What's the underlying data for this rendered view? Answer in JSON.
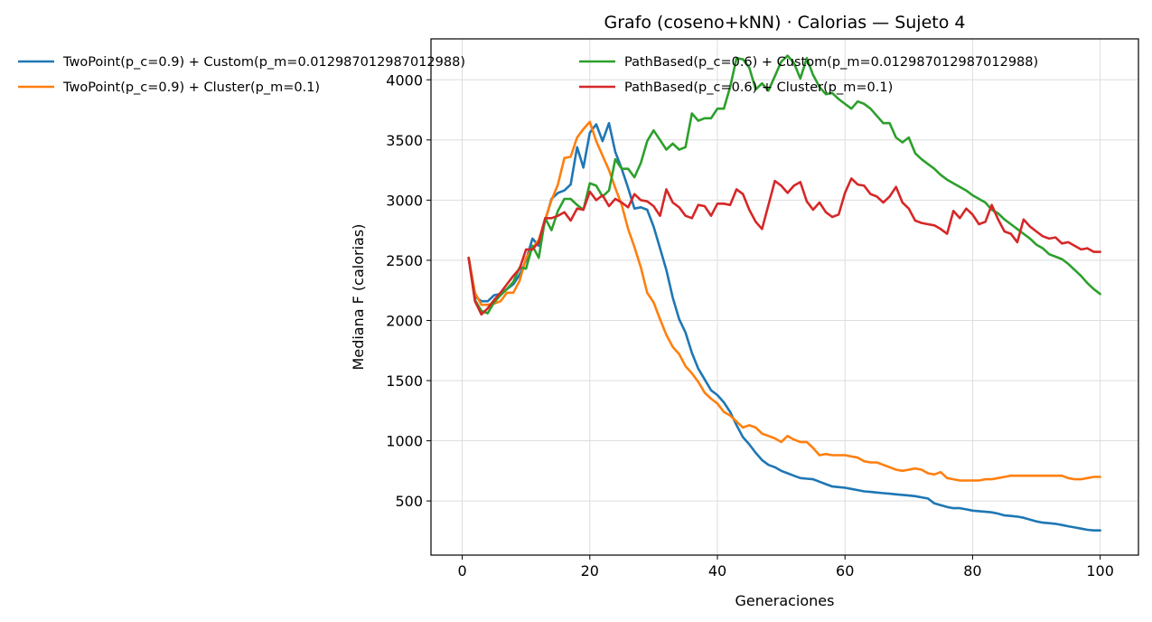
{
  "chart_data": {
    "type": "line",
    "title": "Grafo (coseno+kNN) · Calorias — Sujeto 4",
    "xlabel": "Generaciones",
    "ylabel": "Mediana F (calorias)",
    "xlim": [
      -4.9,
      106
    ],
    "ylim": [
      50,
      4340
    ],
    "xticks": [
      0,
      20,
      40,
      60,
      80,
      100
    ],
    "yticks": [
      500,
      1000,
      1500,
      2000,
      2500,
      3000,
      3500,
      4000
    ],
    "grid": true,
    "legend_placement": "top, two columns",
    "series": [
      {
        "name": "TwoPoint(p_c=0.9) + Custom(p_m=0.012987012987012988)",
        "color": "#1f77b4",
        "x": [
          1,
          2,
          3,
          4,
          5,
          6,
          7,
          8,
          9,
          10,
          11,
          12,
          13,
          14,
          15,
          16,
          17,
          18,
          19,
          20,
          21,
          22,
          23,
          24,
          25,
          26,
          27,
          28,
          29,
          30,
          31,
          32,
          33,
          34,
          35,
          36,
          37,
          38,
          39,
          40,
          41,
          42,
          43,
          44,
          45,
          46,
          47,
          48,
          49,
          50,
          51,
          52,
          53,
          54,
          55,
          56,
          57,
          58,
          59,
          60,
          61,
          62,
          63,
          64,
          65,
          66,
          67,
          68,
          69,
          70,
          71,
          72,
          73,
          74,
          75,
          76,
          77,
          78,
          79,
          80,
          81,
          82,
          83,
          84,
          85,
          86,
          87,
          88,
          89,
          90,
          91,
          92,
          93,
          94,
          95,
          96,
          97,
          98,
          99,
          100
        ],
        "y": [
          2520,
          2200,
          2160,
          2160,
          2210,
          2220,
          2260,
          2300,
          2380,
          2500,
          2680,
          2620,
          2830,
          3010,
          3060,
          3080,
          3130,
          3440,
          3270,
          3560,
          3630,
          3490,
          3640,
          3400,
          3260,
          3100,
          2930,
          2940,
          2920,
          2780,
          2600,
          2420,
          2190,
          2010,
          1900,
          1730,
          1600,
          1510,
          1420,
          1380,
          1320,
          1240,
          1130,
          1030,
          970,
          900,
          840,
          800,
          780,
          750,
          730,
          710,
          690,
          685,
          680,
          660,
          640,
          620,
          615,
          610,
          600,
          590,
          580,
          575,
          570,
          565,
          560,
          555,
          550,
          545,
          540,
          530,
          520,
          480,
          465,
          450,
          440,
          440,
          430,
          420,
          415,
          410,
          405,
          395,
          380,
          375,
          370,
          360,
          345,
          330,
          320,
          315,
          310,
          300,
          290,
          280,
          270,
          260,
          255,
          255
        ]
      },
      {
        "name": "TwoPoint(p_c=0.9) + Cluster(p_m=0.1)",
        "color": "#ff7f0e",
        "x": [
          1,
          2,
          3,
          4,
          5,
          6,
          7,
          8,
          9,
          10,
          11,
          12,
          13,
          14,
          15,
          16,
          17,
          18,
          19,
          20,
          21,
          22,
          23,
          24,
          25,
          26,
          27,
          28,
          29,
          30,
          31,
          32,
          33,
          34,
          35,
          36,
          37,
          38,
          39,
          40,
          41,
          42,
          43,
          44,
          45,
          46,
          47,
          48,
          49,
          50,
          51,
          52,
          53,
          54,
          55,
          56,
          57,
          58,
          59,
          60,
          61,
          62,
          63,
          64,
          65,
          66,
          67,
          68,
          69,
          70,
          71,
          72,
          73,
          74,
          75,
          76,
          77,
          78,
          79,
          80,
          81,
          82,
          83,
          84,
          85,
          86,
          87,
          88,
          89,
          90,
          91,
          92,
          93,
          94,
          95,
          96,
          97,
          98,
          99,
          100
        ],
        "y": [
          2520,
          2230,
          2130,
          2130,
          2140,
          2160,
          2230,
          2230,
          2330,
          2520,
          2600,
          2670,
          2840,
          3000,
          3130,
          3350,
          3360,
          3520,
          3590,
          3650,
          3490,
          3370,
          3250,
          3100,
          2960,
          2760,
          2610,
          2440,
          2230,
          2150,
          2010,
          1880,
          1780,
          1720,
          1620,
          1560,
          1490,
          1400,
          1350,
          1310,
          1240,
          1210,
          1160,
          1110,
          1130,
          1110,
          1060,
          1040,
          1020,
          990,
          1040,
          1010,
          990,
          990,
          940,
          880,
          890,
          880,
          880,
          880,
          870,
          860,
          830,
          820,
          820,
          800,
          780,
          760,
          750,
          760,
          770,
          760,
          730,
          720,
          740,
          690,
          680,
          670,
          670,
          670,
          670,
          680,
          680,
          690,
          700,
          710,
          710,
          710,
          710,
          710,
          710,
          710,
          710,
          710,
          690,
          680,
          680,
          690,
          700,
          700
        ]
      },
      {
        "name": "PathBased(p_c=0.6) + Custom(p_m=0.012987012987012988)",
        "color": "#2ca02c",
        "x": [
          1,
          2,
          3,
          4,
          5,
          6,
          7,
          8,
          9,
          10,
          11,
          12,
          13,
          14,
          15,
          16,
          17,
          18,
          19,
          20,
          21,
          22,
          23,
          24,
          25,
          26,
          27,
          28,
          29,
          30,
          31,
          32,
          33,
          34,
          35,
          36,
          37,
          38,
          39,
          40,
          41,
          42,
          43,
          44,
          45,
          46,
          47,
          48,
          49,
          50,
          51,
          52,
          53,
          54,
          55,
          56,
          57,
          58,
          59,
          60,
          61,
          62,
          63,
          64,
          65,
          66,
          67,
          68,
          69,
          70,
          71,
          72,
          73,
          74,
          75,
          76,
          77,
          78,
          79,
          80,
          81,
          82,
          83,
          84,
          85,
          86,
          87,
          88,
          89,
          90,
          91,
          92,
          93,
          94,
          95,
          96,
          97,
          98,
          99,
          100
        ],
        "y": [
          2520,
          2170,
          2080,
          2060,
          2150,
          2210,
          2260,
          2320,
          2440,
          2430,
          2620,
          2520,
          2850,
          2750,
          2910,
          3010,
          3010,
          2960,
          2920,
          3140,
          3120,
          3030,
          3080,
          3340,
          3260,
          3260,
          3190,
          3310,
          3490,
          3580,
          3500,
          3420,
          3470,
          3420,
          3440,
          3720,
          3660,
          3680,
          3680,
          3760,
          3760,
          3940,
          4180,
          4170,
          4100,
          3920,
          3970,
          3910,
          4030,
          4150,
          4200,
          4140,
          4010,
          4180,
          4040,
          3940,
          3880,
          3890,
          3840,
          3800,
          3760,
          3820,
          3800,
          3760,
          3700,
          3640,
          3640,
          3520,
          3480,
          3520,
          3390,
          3340,
          3300,
          3260,
          3210,
          3170,
          3140,
          3110,
          3080,
          3040,
          3010,
          2980,
          2920,
          2890,
          2840,
          2800,
          2760,
          2720,
          2680,
          2630,
          2600,
          2550,
          2530,
          2510,
          2470,
          2420,
          2370,
          2310,
          2260,
          2220
        ]
      },
      {
        "name": "PathBased(p_c=0.6) + Cluster(p_m=0.1)",
        "color": "#d62728",
        "x": [
          1,
          2,
          3,
          4,
          5,
          6,
          7,
          8,
          9,
          10,
          11,
          12,
          13,
          14,
          15,
          16,
          17,
          18,
          19,
          20,
          21,
          22,
          23,
          24,
          25,
          26,
          27,
          28,
          29,
          30,
          31,
          32,
          33,
          34,
          35,
          36,
          37,
          38,
          39,
          40,
          41,
          42,
          43,
          44,
          45,
          46,
          47,
          48,
          49,
          50,
          51,
          52,
          53,
          54,
          55,
          56,
          57,
          58,
          59,
          60,
          61,
          62,
          63,
          64,
          65,
          66,
          67,
          68,
          69,
          70,
          71,
          72,
          73,
          74,
          75,
          76,
          77,
          78,
          79,
          80,
          81,
          82,
          83,
          84,
          85,
          86,
          87,
          88,
          89,
          90,
          91,
          92,
          93,
          94,
          95,
          96,
          97,
          98,
          99,
          100
        ],
        "y": [
          2520,
          2160,
          2050,
          2100,
          2170,
          2230,
          2300,
          2370,
          2430,
          2590,
          2590,
          2650,
          2850,
          2850,
          2870,
          2900,
          2830,
          2930,
          2920,
          3070,
          3000,
          3040,
          2950,
          3010,
          2980,
          2940,
          3050,
          3000,
          2990,
          2950,
          2870,
          3090,
          2980,
          2940,
          2870,
          2850,
          2960,
          2950,
          2870,
          2970,
          2970,
          2960,
          3090,
          3050,
          2920,
          2820,
          2760,
          2960,
          3160,
          3120,
          3060,
          3120,
          3150,
          2990,
          2920,
          2980,
          2900,
          2860,
          2880,
          3060,
          3180,
          3130,
          3120,
          3050,
          3030,
          2980,
          3030,
          3110,
          2980,
          2930,
          2830,
          2810,
          2800,
          2790,
          2760,
          2720,
          2910,
          2850,
          2930,
          2880,
          2800,
          2820,
          2960,
          2840,
          2740,
          2720,
          2650,
          2840,
          2780,
          2740,
          2700,
          2680,
          2690,
          2640,
          2650,
          2620,
          2590,
          2600,
          2570,
          2570
        ]
      }
    ]
  }
}
